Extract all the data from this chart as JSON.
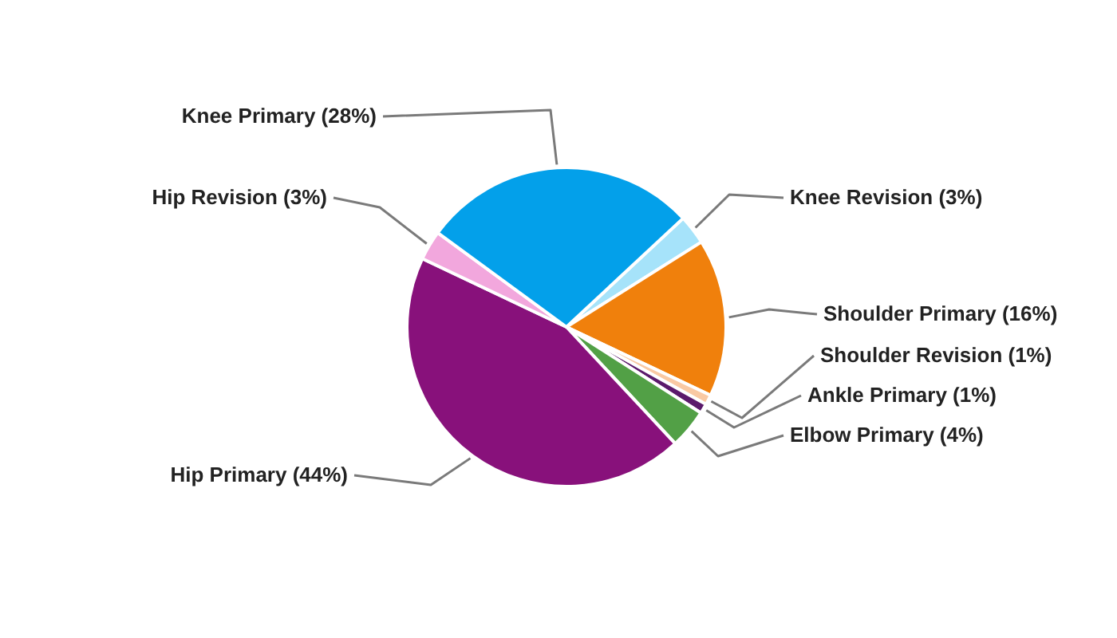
{
  "chart_data": {
    "type": "pie",
    "categories": [
      "Knee Revision",
      "Shoulder Primary",
      "Shoulder Revision",
      "Ankle Primary",
      "Elbow Primary",
      "Hip Primary",
      "Hip Revision",
      "Knee Primary"
    ],
    "values": [
      3,
      16,
      1,
      1,
      4,
      44,
      3,
      28
    ],
    "value_labels": [
      "(3%)",
      "(16%)",
      "(1%)",
      "(1%)",
      "(4%)",
      "(44%)",
      "(3%)",
      "(28%)"
    ],
    "colors": [
      "#a6e3fa",
      "#f0800c",
      "#f9c9a3",
      "#5b1a6b",
      "#52a046",
      "#88117b",
      "#f2a7dd",
      "#03a0ea"
    ],
    "legend": false
  }
}
